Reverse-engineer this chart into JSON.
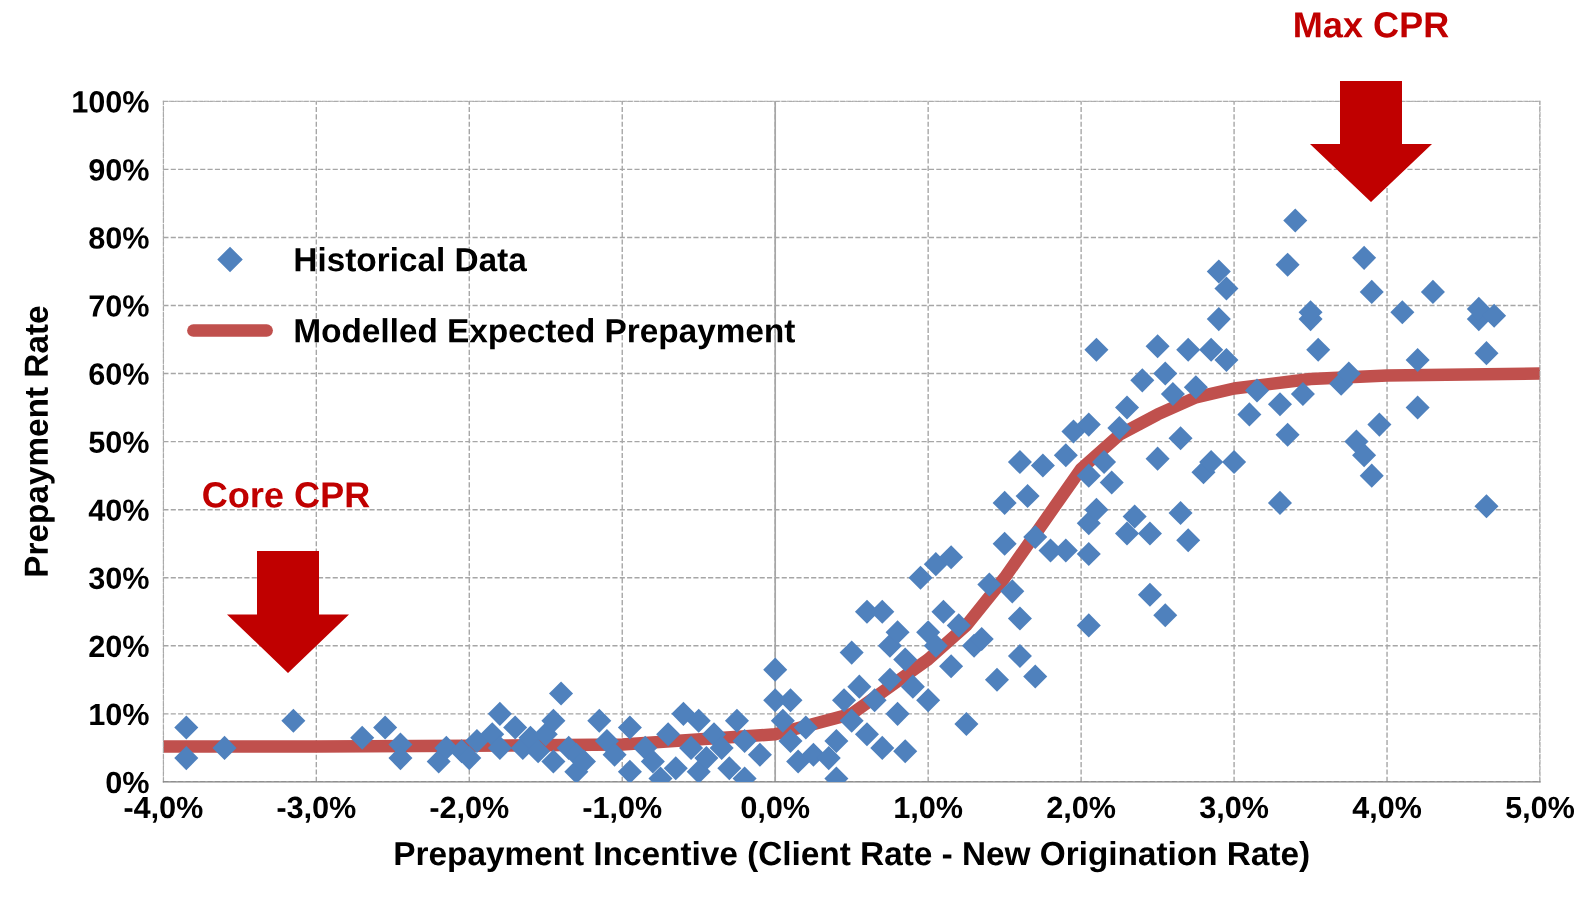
{
  "chart_data": {
    "type": "scatter",
    "xlabel": "Prepayment Incentive (Client Rate - New Origination Rate)",
    "ylabel": "Prepayment Rate",
    "xlim": [
      -4,
      5
    ],
    "ylim": [
      0,
      100
    ],
    "xticks": [
      {
        "value": -4,
        "label": "-4,0%"
      },
      {
        "value": -3,
        "label": "-3,0%"
      },
      {
        "value": -2,
        "label": "-2,0%"
      },
      {
        "value": -1,
        "label": "-1,0%"
      },
      {
        "value": 0,
        "label": "0,0%"
      },
      {
        "value": 1,
        "label": "1,0%"
      },
      {
        "value": 2,
        "label": "2,0%"
      },
      {
        "value": 3,
        "label": "3,0%"
      },
      {
        "value": 4,
        "label": "4,0%"
      },
      {
        "value": 5,
        "label": "5,0%"
      }
    ],
    "yticks": [
      {
        "value": 0,
        "label": "0%"
      },
      {
        "value": 10,
        "label": "10%"
      },
      {
        "value": 20,
        "label": "20%"
      },
      {
        "value": 30,
        "label": "30%"
      },
      {
        "value": 40,
        "label": "40%"
      },
      {
        "value": 50,
        "label": "50%"
      },
      {
        "value": 60,
        "label": "60%"
      },
      {
        "value": 70,
        "label": "70%"
      },
      {
        "value": 80,
        "label": "80%"
      },
      {
        "value": 90,
        "label": "90%"
      },
      {
        "value": 100,
        "label": "100%"
      }
    ],
    "grid": true,
    "legend": "upper left",
    "marker": "diamond",
    "ref_lines": [
      {
        "axis": "x",
        "value": 0,
        "color": "#a6a6a6",
        "line_style": "solid"
      }
    ],
    "annotations": [
      "Core CPR",
      "Max CPR"
    ],
    "series": [
      {
        "name": "Historical Data",
        "color": "#4f81bd",
        "x": [
          -3.85,
          -3.85,
          -3.6,
          -3.15,
          -2.7,
          -2.55,
          -2.45,
          -2.45,
          -2.2,
          -2.15,
          -2.05,
          -2.0,
          -1.95,
          -1.85,
          -1.8,
          -1.8,
          -1.7,
          -1.65,
          -1.6,
          -1.55,
          -1.5,
          -1.45,
          -1.4,
          -1.45,
          -1.35,
          -1.3,
          -1.3,
          -1.25,
          -1.15,
          -1.1,
          -1.05,
          -0.95,
          -0.95,
          -0.85,
          -0.8,
          -0.75,
          -0.7,
          -0.65,
          -0.6,
          -0.55,
          -0.5,
          -0.5,
          -0.45,
          -0.4,
          -0.35,
          -0.3,
          -0.25,
          -0.2,
          -0.2,
          -0.1,
          0.0,
          0.0,
          0.05,
          0.1,
          0.1,
          0.15,
          0.2,
          0.25,
          0.35,
          0.4,
          0.4,
          0.45,
          0.5,
          0.5,
          0.55,
          0.6,
          0.6,
          0.65,
          0.7,
          0.7,
          0.75,
          0.75,
          0.8,
          0.8,
          0.85,
          0.85,
          0.9,
          0.95,
          1.0,
          1.0,
          1.05,
          1.05,
          1.1,
          1.15,
          1.15,
          1.2,
          1.25,
          1.3,
          1.35,
          1.4,
          1.45,
          1.5,
          1.5,
          1.55,
          1.6,
          1.6,
          1.6,
          1.65,
          1.7,
          1.7,
          1.75,
          1.8,
          1.9,
          1.9,
          1.95,
          2.05,
          2.05,
          2.05,
          2.05,
          2.05,
          2.1,
          2.1,
          2.15,
          2.2,
          2.25,
          2.3,
          2.3,
          2.35,
          2.4,
          2.45,
          2.45,
          2.5,
          2.5,
          2.55,
          2.55,
          2.6,
          2.65,
          2.65,
          2.7,
          2.7,
          2.75,
          2.8,
          2.85,
          2.85,
          2.9,
          2.9,
          2.95,
          2.95,
          3.0,
          3.1,
          3.15,
          3.3,
          3.3,
          3.35,
          3.35,
          3.4,
          3.45,
          3.5,
          3.5,
          3.55,
          3.7,
          3.75,
          3.8,
          3.85,
          3.85,
          3.9,
          3.9,
          3.95,
          4.1,
          4.2,
          4.2,
          4.3,
          4.6,
          4.6,
          4.65,
          4.65,
          4.7
        ],
        "values": [
          8,
          3.5,
          5,
          9,
          6.5,
          8,
          5.5,
          3.5,
          3,
          5,
          4.5,
          3.5,
          6,
          7,
          10,
          5,
          8,
          5,
          6.5,
          4.5,
          7,
          9,
          13,
          3,
          5,
          1.5,
          4,
          3,
          9,
          6,
          4,
          8,
          1.5,
          5,
          3,
          0.5,
          7,
          2,
          10,
          5,
          9,
          1.5,
          3.5,
          7,
          5,
          2,
          9,
          6,
          0.5,
          4,
          16.5,
          12,
          9,
          12,
          6,
          3,
          8,
          4,
          3.5,
          0.5,
          6,
          12,
          19,
          9,
          14,
          25,
          7,
          12,
          25,
          5,
          20,
          15,
          22,
          10,
          18,
          4.5,
          14,
          30,
          22,
          12,
          32,
          20,
          25,
          33,
          17,
          23,
          8.5,
          20,
          21,
          29,
          15,
          35,
          41,
          28,
          24,
          18.5,
          47,
          42,
          36,
          15.5,
          46.5,
          34,
          34,
          48,
          51.5,
          52.5,
          45,
          38,
          33.5,
          23,
          63.5,
          40,
          47,
          44,
          52,
          55,
          36.5,
          39,
          59,
          27.5,
          36.5,
          64,
          47.5,
          24.5,
          60,
          57,
          50.5,
          39.5,
          63.5,
          35.5,
          58,
          45.5,
          63.5,
          47,
          68,
          75,
          72.5,
          62,
          47,
          54,
          57.5,
          55.5,
          41,
          51,
          76,
          82.5,
          57,
          68,
          69,
          63.5,
          58.5,
          60,
          50,
          77,
          48,
          72,
          45,
          52.5,
          69,
          62,
          55,
          72,
          68,
          69.5,
          63,
          40.5,
          68.5
        ]
      },
      {
        "name": "Modelled Expected Prepayment",
        "type": "line",
        "color": "#c0504d",
        "marker": "none",
        "x": [
          -4,
          -3,
          -2,
          -1,
          0,
          0.5,
          1.0,
          1.25,
          1.5,
          1.75,
          2.0,
          2.25,
          2.5,
          2.75,
          3.0,
          3.5,
          4.0,
          5.0
        ],
        "values": [
          5.2,
          5.2,
          5.3,
          5.5,
          7,
          10,
          18,
          23,
          30,
          38,
          46,
          51,
          54,
          56.5,
          57.8,
          59.2,
          59.7,
          60
        ]
      }
    ]
  }
}
